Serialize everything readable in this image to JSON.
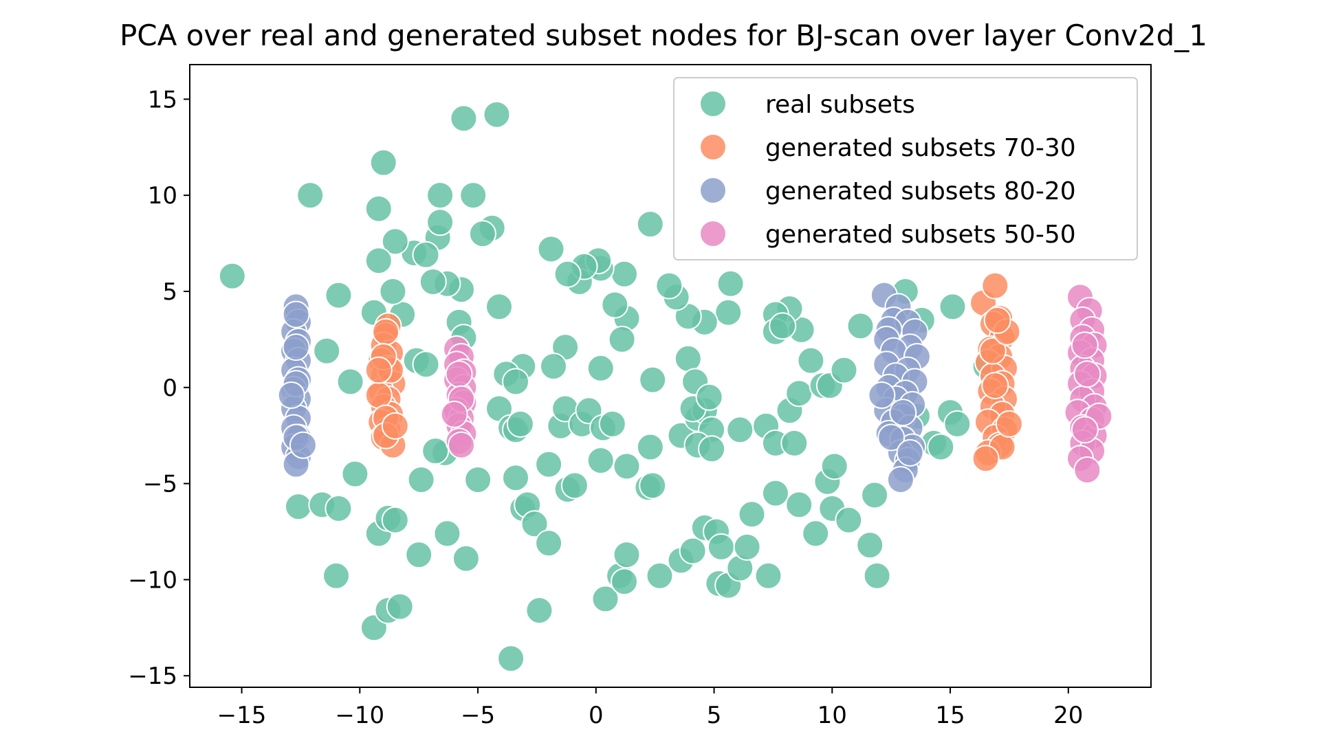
{
  "chart_data": {
    "type": "scatter",
    "title": "PCA over real and generated subset nodes for BJ-scan over layer Conv2d_1",
    "xlabel": "",
    "ylabel": "",
    "xlim": [
      -17.2,
      23.5
    ],
    "ylim": [
      -15.6,
      16.8
    ],
    "xticks": [
      -15,
      -10,
      -5,
      0,
      5,
      10,
      15,
      20
    ],
    "yticks": [
      15,
      10,
      5,
      0,
      -5,
      -10,
      -15
    ],
    "xtick_labels": [
      "−15",
      "−10",
      "−5",
      "0",
      "5",
      "10",
      "15",
      "20"
    ],
    "ytick_labels": [
      "15",
      "10",
      "5",
      "0",
      "−5",
      "−10",
      "−15"
    ],
    "grid": false,
    "legend_position": "top-right",
    "series": [
      {
        "name": "real subsets",
        "color": "#66c2a5",
        "points": [
          [
            -15.4,
            5.8
          ],
          [
            -12.1,
            10.0
          ],
          [
            -10.9,
            4.8
          ],
          [
            -11.4,
            1.9
          ],
          [
            -10.4,
            0.3
          ],
          [
            -10.2,
            -4.5
          ],
          [
            -11.0,
            -9.8
          ],
          [
            -12.6,
            -6.2
          ],
          [
            -11.6,
            -6.1
          ],
          [
            -10.9,
            -6.3
          ],
          [
            -9.4,
            -12.5
          ],
          [
            -8.8,
            -11.6
          ],
          [
            -8.3,
            -11.4
          ],
          [
            -9.2,
            -7.6
          ],
          [
            -8.8,
            -6.8
          ],
          [
            -8.5,
            -6.9
          ],
          [
            -7.5,
            -8.7
          ],
          [
            -7.4,
            -4.8
          ],
          [
            -6.3,
            -7.6
          ],
          [
            -5.5,
            -8.9
          ],
          [
            -6.4,
            -3.4
          ],
          [
            -5.0,
            -4.8
          ],
          [
            -4.1,
            -1.1
          ],
          [
            -3.6,
            -2.1
          ],
          [
            -3.4,
            -2.2
          ],
          [
            -3.4,
            -4.7
          ],
          [
            -3.1,
            -6.3
          ],
          [
            -2.9,
            -6.1
          ],
          [
            -2.6,
            -7.1
          ],
          [
            -2.0,
            -8.1
          ],
          [
            -2.4,
            -11.6
          ],
          [
            -3.6,
            -14.1
          ],
          [
            -1.2,
            -5.3
          ],
          [
            -0.9,
            -5.1
          ],
          [
            -1.5,
            -2.0
          ],
          [
            -1.3,
            -1.1
          ],
          [
            -0.6,
            -1.9
          ],
          [
            -0.3,
            -1.2
          ],
          [
            0.3,
            -2.1
          ],
          [
            0.7,
            -1.9
          ],
          [
            0.2,
            -3.8
          ],
          [
            -2.0,
            -4.0
          ],
          [
            0.4,
            -11.0
          ],
          [
            1.0,
            -9.8
          ],
          [
            1.2,
            -10.1
          ],
          [
            1.3,
            -8.7
          ],
          [
            1.3,
            -4.1
          ],
          [
            2.3,
            -3.1
          ],
          [
            2.2,
            -5.2
          ],
          [
            2.4,
            -5.1
          ],
          [
            2.7,
            -9.8
          ],
          [
            3.6,
            -9.0
          ],
          [
            4.1,
            -8.5
          ],
          [
            4.6,
            -7.3
          ],
          [
            5.1,
            -7.5
          ],
          [
            5.3,
            -8.3
          ],
          [
            5.2,
            -10.2
          ],
          [
            5.6,
            -10.3
          ],
          [
            6.1,
            -9.4
          ],
          [
            6.4,
            -8.3
          ],
          [
            7.3,
            -9.8
          ],
          [
            6.6,
            -6.6
          ],
          [
            7.6,
            -5.5
          ],
          [
            8.6,
            -6.1
          ],
          [
            9.3,
            -7.6
          ],
          [
            9.8,
            -4.9
          ],
          [
            10.1,
            -4.1
          ],
          [
            10.0,
            -6.3
          ],
          [
            10.7,
            -6.9
          ],
          [
            11.6,
            -8.2
          ],
          [
            11.9,
            -9.8
          ],
          [
            11.8,
            -5.6
          ],
          [
            3.6,
            -2.5
          ],
          [
            4.3,
            -1.6
          ],
          [
            4.6,
            -1.2
          ],
          [
            4.9,
            -2.2
          ],
          [
            4.3,
            -3.0
          ],
          [
            4.9,
            -3.2
          ],
          [
            6.1,
            -2.2
          ],
          [
            7.2,
            -2.0
          ],
          [
            7.6,
            -2.9
          ],
          [
            8.4,
            -2.9
          ],
          [
            8.2,
            -1.2
          ],
          [
            8.6,
            -0.3
          ],
          [
            9.6,
            0.1
          ],
          [
            9.9,
            0.1
          ],
          [
            10.5,
            0.9
          ],
          [
            11.2,
            3.2
          ],
          [
            9.1,
            1.4
          ],
          [
            8.7,
            3.0
          ],
          [
            8.2,
            4.1
          ],
          [
            7.6,
            3.8
          ],
          [
            7.6,
            2.9
          ],
          [
            7.9,
            3.2
          ],
          [
            5.6,
            3.9
          ],
          [
            5.7,
            5.4
          ],
          [
            4.6,
            3.4
          ],
          [
            3.9,
            3.7
          ],
          [
            3.4,
            4.7
          ],
          [
            3.1,
            5.3
          ],
          [
            4.1,
            -1.1
          ],
          [
            3.9,
            1.5
          ],
          [
            4.2,
            0.3
          ],
          [
            4.8,
            -0.5
          ],
          [
            2.3,
            8.5
          ],
          [
            1.2,
            5.9
          ],
          [
            1.3,
            3.6
          ],
          [
            0.8,
            4.3
          ],
          [
            -0.3,
            6.3
          ],
          [
            0.2,
            6.2
          ],
          [
            0.1,
            6.6
          ],
          [
            -0.7,
            5.5
          ],
          [
            -0.5,
            6.3
          ],
          [
            -1.2,
            5.9
          ],
          [
            -1.9,
            7.2
          ],
          [
            -1.3,
            2.1
          ],
          [
            -1.8,
            1.1
          ],
          [
            0.2,
            1.0
          ],
          [
            -3.1,
            1.1
          ],
          [
            -3.8,
            0.7
          ],
          [
            -3.4,
            0.3
          ],
          [
            -4.1,
            4.2
          ],
          [
            -4.4,
            8.3
          ],
          [
            -4.8,
            8.0
          ],
          [
            -5.2,
            10.0
          ],
          [
            -5.7,
            5.1
          ],
          [
            -6.3,
            5.4
          ],
          [
            -5.8,
            3.4
          ],
          [
            -5.6,
            2.6
          ],
          [
            -6.9,
            5.5
          ],
          [
            -6.7,
            7.8
          ],
          [
            -6.6,
            8.6
          ],
          [
            -7.7,
            7.0
          ],
          [
            -7.2,
            6.9
          ],
          [
            -7.6,
            1.4
          ],
          [
            -7.2,
            1.2
          ],
          [
            -8.2,
            3.8
          ],
          [
            -9.0,
            11.7
          ],
          [
            -9.2,
            9.3
          ],
          [
            -8.5,
            7.6
          ],
          [
            -9.2,
            6.6
          ],
          [
            -8.6,
            5.0
          ],
          [
            -9.4,
            3.9
          ],
          [
            -6.6,
            10.0
          ],
          [
            -5.6,
            14.0
          ],
          [
            -4.2,
            14.2
          ],
          [
            2.4,
            0.4
          ],
          [
            1.1,
            2.5
          ],
          [
            12.9,
            -0.1
          ],
          [
            13.6,
            -1.5
          ],
          [
            14.3,
            -2.9
          ],
          [
            15.0,
            -1.3
          ],
          [
            15.3,
            -1.9
          ],
          [
            14.6,
            -3.1
          ],
          [
            16.5,
            1.1
          ],
          [
            15.1,
            4.2
          ],
          [
            13.8,
            3.5
          ],
          [
            13.1,
            5.0
          ],
          [
            -6.8,
            -3.3
          ],
          [
            -3.2,
            -1.9
          ]
        ]
      },
      {
        "name": "generated subsets 70-30",
        "color": "#fc8d62",
        "points": [
          [
            -8.8,
            3.2
          ],
          [
            -8.9,
            2.7
          ],
          [
            -9.0,
            2.2
          ],
          [
            -8.7,
            1.8
          ],
          [
            -9.1,
            1.4
          ],
          [
            -8.8,
            1.0
          ],
          [
            -9.0,
            0.6
          ],
          [
            -8.6,
            0.2
          ],
          [
            -9.1,
            -0.2
          ],
          [
            -8.8,
            -0.6
          ],
          [
            -9.0,
            -1.0
          ],
          [
            -8.7,
            -1.4
          ],
          [
            -9.1,
            -1.8
          ],
          [
            -8.8,
            -2.2
          ],
          [
            -9.0,
            -2.6
          ],
          [
            -8.6,
            -3.0
          ],
          [
            -8.9,
            2.9
          ],
          [
            -8.7,
            0.9
          ],
          [
            -9.2,
            -0.4
          ],
          [
            -8.9,
            -1.6
          ],
          [
            -8.9,
            -2.5
          ],
          [
            -9.0,
            1.6
          ],
          [
            -9.2,
            0.9
          ],
          [
            -8.5,
            -2.0
          ],
          [
            16.4,
            4.4
          ],
          [
            16.9,
            5.3
          ],
          [
            17.1,
            3.6
          ],
          [
            16.8,
            3.3
          ],
          [
            17.2,
            2.6
          ],
          [
            16.7,
            2.0
          ],
          [
            17.1,
            1.6
          ],
          [
            16.6,
            1.3
          ],
          [
            17.3,
            1.0
          ],
          [
            16.8,
            0.6
          ],
          [
            17.2,
            0.2
          ],
          [
            16.7,
            -0.2
          ],
          [
            17.3,
            -0.6
          ],
          [
            16.8,
            -1.0
          ],
          [
            17.2,
            -1.4
          ],
          [
            16.6,
            -1.8
          ],
          [
            17.3,
            -2.2
          ],
          [
            16.9,
            -2.6
          ],
          [
            17.1,
            -3.0
          ],
          [
            16.6,
            -3.4
          ],
          [
            17.2,
            -3.1
          ],
          [
            16.8,
            1.9
          ],
          [
            17.5,
            -1.9
          ],
          [
            17.4,
            2.9
          ],
          [
            16.5,
            -3.7
          ],
          [
            17.0,
            3.5
          ],
          [
            16.9,
            0.1
          ]
        ]
      },
      {
        "name": "generated subsets 80-20",
        "color": "#8da0cb",
        "points": [
          [
            -12.7,
            4.2
          ],
          [
            -12.6,
            3.4
          ],
          [
            -12.8,
            2.9
          ],
          [
            -12.6,
            2.4
          ],
          [
            -12.8,
            1.9
          ],
          [
            -12.6,
            1.4
          ],
          [
            -12.8,
            0.9
          ],
          [
            -12.6,
            0.4
          ],
          [
            -12.8,
            -0.1
          ],
          [
            -12.6,
            -0.6
          ],
          [
            -12.8,
            -1.1
          ],
          [
            -12.6,
            -1.6
          ],
          [
            -12.8,
            -2.1
          ],
          [
            -12.6,
            -2.6
          ],
          [
            -12.8,
            -3.1
          ],
          [
            -12.6,
            -3.6
          ],
          [
            -12.7,
            -4.0
          ],
          [
            -12.7,
            2.1
          ],
          [
            -12.7,
            0.2
          ],
          [
            -12.7,
            -2.6
          ],
          [
            -12.4,
            -3.0
          ],
          [
            -12.7,
            3.8
          ],
          [
            -12.9,
            -0.4
          ],
          [
            12.2,
            4.8
          ],
          [
            12.8,
            4.2
          ],
          [
            12.6,
            3.5
          ],
          [
            13.2,
            3.4
          ],
          [
            12.4,
            3.0
          ],
          [
            13.5,
            2.9
          ],
          [
            12.3,
            2.5
          ],
          [
            13.3,
            2.1
          ],
          [
            12.6,
            1.9
          ],
          [
            13.6,
            1.6
          ],
          [
            12.3,
            1.2
          ],
          [
            13.2,
            0.9
          ],
          [
            12.7,
            0.6
          ],
          [
            13.5,
            0.3
          ],
          [
            12.4,
            0.0
          ],
          [
            13.1,
            -0.3
          ],
          [
            12.7,
            -0.6
          ],
          [
            13.4,
            -0.9
          ],
          [
            12.3,
            -1.2
          ],
          [
            13.0,
            -1.5
          ],
          [
            12.6,
            -1.8
          ],
          [
            13.3,
            -2.1
          ],
          [
            12.4,
            -2.4
          ],
          [
            13.0,
            -2.7
          ],
          [
            13.4,
            -3.1
          ],
          [
            12.9,
            -3.4
          ],
          [
            13.2,
            -3.8
          ],
          [
            13.1,
            -4.3
          ],
          [
            12.9,
            -4.8
          ],
          [
            13.0,
            -1.3
          ],
          [
            12.1,
            -0.4
          ],
          [
            12.5,
            -2.6
          ],
          [
            13.3,
            -3.4
          ]
        ]
      },
      {
        "name": "generated subsets 50-50",
        "color": "#e78ac3",
        "points": [
          [
            -5.9,
            2.0
          ],
          [
            -5.7,
            1.6
          ],
          [
            -5.9,
            1.2
          ],
          [
            -5.6,
            0.8
          ],
          [
            -5.9,
            0.4
          ],
          [
            -5.6,
            0.0
          ],
          [
            -5.8,
            -0.4
          ],
          [
            -5.6,
            -0.8
          ],
          [
            -5.9,
            -1.2
          ],
          [
            -5.7,
            -1.6
          ],
          [
            -5.8,
            -2.0
          ],
          [
            -5.6,
            -2.4
          ],
          [
            -5.8,
            -2.8
          ],
          [
            -5.7,
            -3.0
          ],
          [
            -5.8,
            0.7
          ],
          [
            -5.7,
            -0.6
          ],
          [
            -6.0,
            -1.4
          ],
          [
            20.5,
            4.7
          ],
          [
            20.9,
            4.0
          ],
          [
            20.6,
            3.5
          ],
          [
            21.0,
            3.0
          ],
          [
            20.6,
            2.6
          ],
          [
            21.1,
            2.2
          ],
          [
            20.5,
            1.8
          ],
          [
            21.0,
            1.4
          ],
          [
            20.6,
            1.0
          ],
          [
            21.1,
            0.6
          ],
          [
            20.5,
            0.2
          ],
          [
            21.0,
            -0.2
          ],
          [
            20.6,
            -0.6
          ],
          [
            21.1,
            -1.0
          ],
          [
            20.4,
            -1.3
          ],
          [
            21.0,
            -1.7
          ],
          [
            20.6,
            -2.1
          ],
          [
            21.1,
            -2.5
          ],
          [
            20.6,
            -2.9
          ],
          [
            21.0,
            -3.3
          ],
          [
            20.5,
            -3.7
          ],
          [
            20.8,
            -4.3
          ],
          [
            20.7,
            2.2
          ],
          [
            20.8,
            0.7
          ],
          [
            21.3,
            -1.5
          ],
          [
            20.7,
            -2.2
          ]
        ]
      }
    ]
  }
}
